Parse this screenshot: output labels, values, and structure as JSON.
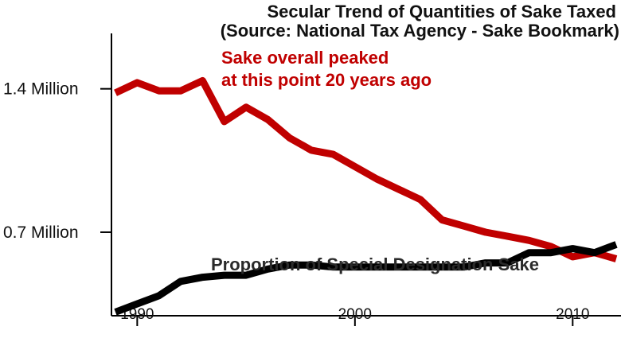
{
  "chart_data": {
    "type": "line",
    "title": "Secular Trend of Quantities of Sake Taxed",
    "subtitle": "(Source: National Tax Agency - Sake Bookmark)",
    "xlabel": "",
    "ylabel": "",
    "xlim": [
      1989,
      2012
    ],
    "ylim": [
      0.3,
      1.62
    ],
    "yticks": [
      {
        "value": 1.4,
        "label": "1.4 Million"
      },
      {
        "value": 0.7,
        "label": "0.7 Million"
      }
    ],
    "xticks": [
      {
        "value": 1990,
        "label": "1990"
      },
      {
        "value": 2000,
        "label": "2000"
      },
      {
        "value": 2010,
        "label": "2010"
      }
    ],
    "grid": false,
    "series": [
      {
        "name": "Sake overall",
        "color": "#c00000",
        "x": [
          1989,
          1990,
          1991,
          1992,
          1993,
          1994,
          1995,
          1996,
          1997,
          1998,
          1999,
          2000,
          2001,
          2002,
          2003,
          2004,
          2005,
          2006,
          2007,
          2008,
          2009,
          2010,
          2011,
          2012
        ],
        "values": [
          1.38,
          1.43,
          1.39,
          1.39,
          1.44,
          1.24,
          1.31,
          1.25,
          1.16,
          1.1,
          1.08,
          1.02,
          0.96,
          0.91,
          0.86,
          0.76,
          0.73,
          0.7,
          0.68,
          0.66,
          0.63,
          0.58,
          0.6,
          0.57
        ]
      },
      {
        "name": "Special Designation Sake",
        "color": "#000000",
        "x": [
          1989,
          1990,
          1991,
          1992,
          1993,
          1994,
          1995,
          1996,
          1997,
          1998,
          1999,
          2000,
          2001,
          2002,
          2003,
          2004,
          2005,
          2006,
          2007,
          2008,
          2009,
          2010,
          2011,
          2012
        ],
        "values": [
          0.31,
          0.35,
          0.39,
          0.46,
          0.48,
          0.49,
          0.49,
          0.52,
          0.54,
          0.54,
          0.53,
          0.53,
          0.53,
          0.53,
          0.53,
          0.53,
          0.53,
          0.55,
          0.55,
          0.6,
          0.6,
          0.62,
          0.6,
          0.64
        ]
      }
    ],
    "annotations": [
      {
        "text_lines": [
          "Sake overall peaked",
          "at this point 20 years ago"
        ],
        "series": "Sake overall",
        "color": "#c00000"
      },
      {
        "text_lines": [
          "Proportion of Special Designation Sake"
        ],
        "series": "Special Designation Sake",
        "color": "#2a2a2a"
      }
    ]
  }
}
